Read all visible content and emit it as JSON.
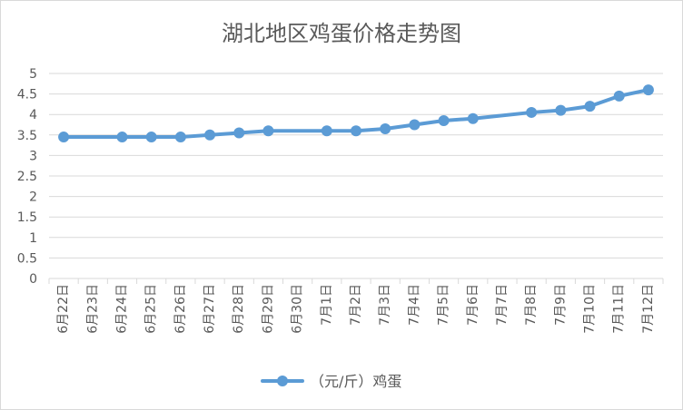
{
  "chart_data": {
    "type": "line",
    "title": "湖北地区鸡蛋价格走势图",
    "categories": [
      "6月22日",
      "6月23日",
      "6月24日",
      "6月25日",
      "6月26日",
      "6月27日",
      "6月28日",
      "6月29日",
      "6月30日",
      "7月1日",
      "7月2日",
      "7月3日",
      "7月4日",
      "7月5日",
      "7月6日",
      "7月7日",
      "7月8日",
      "7月9日",
      "7月10日",
      "7月11日",
      "7月12日"
    ],
    "series": [
      {
        "name": "（元/斤）鸡蛋",
        "values": [
          3.45,
          null,
          3.45,
          3.45,
          3.45,
          3.5,
          3.55,
          3.6,
          null,
          3.6,
          3.6,
          3.65,
          3.75,
          3.85,
          3.9,
          null,
          4.05,
          4.1,
          4.2,
          4.45,
          4.6
        ],
        "color": "#5b9bd5"
      }
    ],
    "ylim": [
      0,
      5
    ],
    "yticks": [
      "0",
      "0.5",
      "1",
      "1.5",
      "2",
      "2.5",
      "3",
      "3.5",
      "4",
      "4.5",
      "5"
    ],
    "grid": true,
    "legend": "bottom-center"
  }
}
